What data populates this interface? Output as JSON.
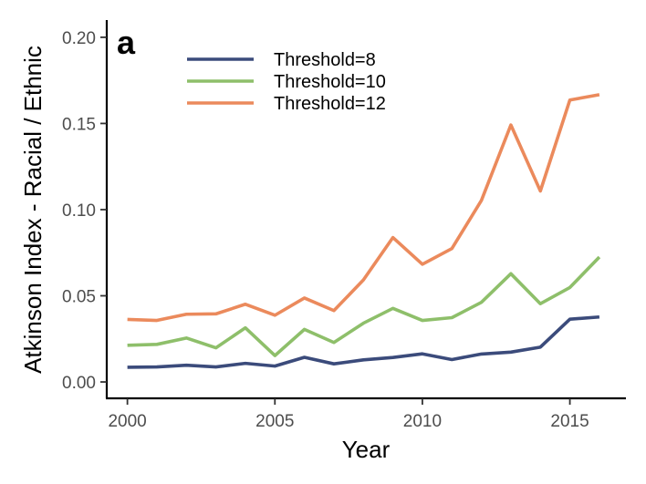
{
  "chart_data": {
    "type": "line",
    "panel_label": "a",
    "xlabel": "Year",
    "ylabel": "Atkinson Index - Racial / Ethnic",
    "xlim": [
      1999.3,
      2016.9
    ],
    "ylim": [
      -0.0095,
      0.21
    ],
    "x_ticks": [
      2000,
      2005,
      2010,
      2015
    ],
    "y_ticks": [
      0.0,
      0.05,
      0.1,
      0.15,
      0.2
    ],
    "y_tick_labels": [
      "0.00",
      "0.05",
      "0.10",
      "0.15",
      "0.20"
    ],
    "grid": false,
    "legend_position": "top-left",
    "x": [
      2000,
      2001,
      2002,
      2003,
      2004,
      2005,
      2006,
      2007,
      2008,
      2009,
      2010,
      2011,
      2012,
      2013,
      2014,
      2015,
      2016
    ],
    "series": [
      {
        "name": "Threshold=8",
        "color": "#3b4b7b",
        "values": [
          0.0085,
          0.0087,
          0.0097,
          0.0087,
          0.0108,
          0.0092,
          0.0143,
          0.0105,
          0.0128,
          0.0142,
          0.0163,
          0.013,
          0.0162,
          0.0173,
          0.0202,
          0.0364,
          0.0377
        ]
      },
      {
        "name": "Threshold=10",
        "color": "#8ebf6a",
        "values": [
          0.0213,
          0.0218,
          0.0255,
          0.0198,
          0.0314,
          0.0153,
          0.0305,
          0.0229,
          0.0341,
          0.0427,
          0.0357,
          0.0373,
          0.0462,
          0.0628,
          0.0454,
          0.0548,
          0.0725
        ]
      },
      {
        "name": "Threshold=12",
        "color": "#eb8a5c",
        "values": [
          0.0363,
          0.0357,
          0.0393,
          0.0395,
          0.0451,
          0.0387,
          0.0487,
          0.0414,
          0.0592,
          0.0838,
          0.0683,
          0.0774,
          0.1053,
          0.1491,
          0.1108,
          0.1636,
          0.1667
        ]
      }
    ]
  }
}
